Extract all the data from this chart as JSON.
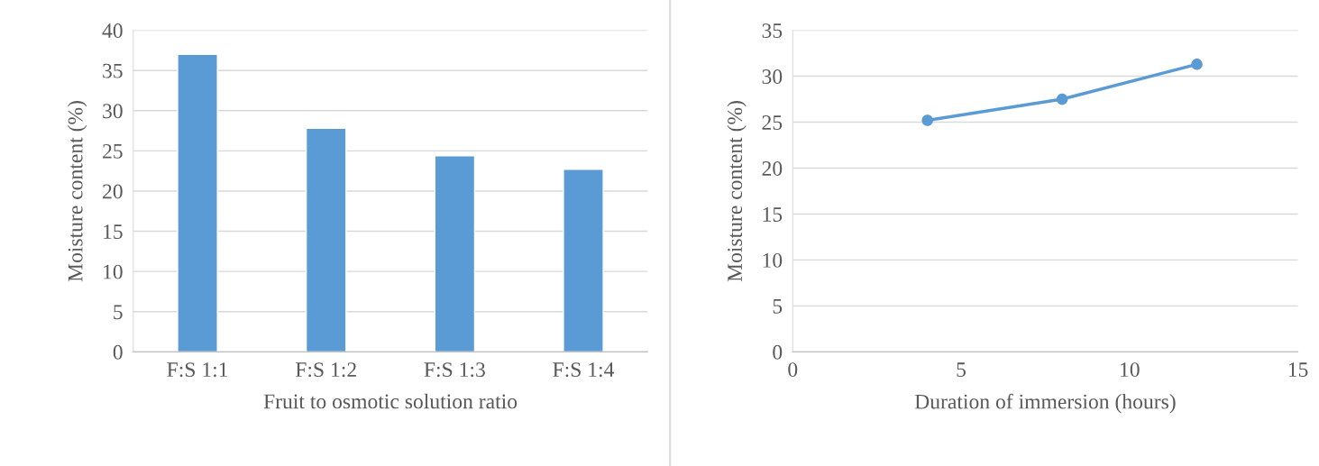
{
  "chart_data": [
    {
      "type": "bar",
      "xlabel": "Fruit to osmotic solution ratio",
      "ylabel": "Moisture content (%)",
      "categories": [
        "F:S 1:1",
        "F:S 1:2",
        "F:S 1:3",
        "F:S 1:4"
      ],
      "series": [
        {
          "color": "#5b9bd5",
          "values": [
            37.0,
            27.8,
            24.4,
            22.7
          ]
        }
      ],
      "ylim": [
        0,
        40
      ],
      "yticks": [
        0,
        5,
        10,
        15,
        20,
        25,
        30,
        35,
        40
      ],
      "grid": "y",
      "legend": false
    },
    {
      "type": "line",
      "xlabel": "Duration of immersion (hours)",
      "ylabel": "Moisture content (%)",
      "x": [
        4,
        8,
        12
      ],
      "series": [
        {
          "color": "#5b9bd5",
          "values": [
            25.2,
            27.5,
            31.3
          ]
        }
      ],
      "xlim": [
        0,
        15
      ],
      "xticks": [
        0,
        5,
        10,
        15
      ],
      "ylim": [
        0,
        35
      ],
      "yticks": [
        0,
        5,
        10,
        15,
        20,
        25,
        30,
        35
      ],
      "grid": "y",
      "legend": false,
      "marker": "circle",
      "line_style": "solid"
    }
  ]
}
